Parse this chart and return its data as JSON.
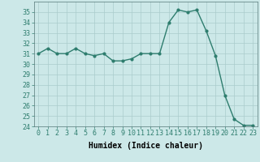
{
  "x": [
    0,
    1,
    2,
    3,
    4,
    5,
    6,
    7,
    8,
    9,
    10,
    11,
    12,
    13,
    14,
    15,
    16,
    17,
    18,
    19,
    20,
    21,
    22,
    23
  ],
  "y": [
    31,
    31.5,
    31,
    31,
    31.5,
    31,
    30.8,
    31,
    30.3,
    30.3,
    30.5,
    31,
    31,
    31,
    34,
    35.2,
    35,
    35.2,
    33.2,
    30.8,
    27,
    24.7,
    24.1,
    24.1
  ],
  "xlabel": "Humidex (Indice chaleur)",
  "ylim": [
    24,
    36
  ],
  "xlim": [
    -0.5,
    23.5
  ],
  "yticks": [
    24,
    25,
    26,
    27,
    28,
    29,
    30,
    31,
    32,
    33,
    34,
    35
  ],
  "xticks": [
    0,
    1,
    2,
    3,
    4,
    5,
    6,
    7,
    8,
    9,
    10,
    11,
    12,
    13,
    14,
    15,
    16,
    17,
    18,
    19,
    20,
    21,
    22,
    23
  ],
  "xtick_labels": [
    "0",
    "1",
    "2",
    "3",
    "4",
    "5",
    "6",
    "7",
    "8",
    "9",
    "10",
    "11",
    "12",
    "13",
    "14",
    "15",
    "16",
    "17",
    "18",
    "19",
    "20",
    "21",
    "22",
    "23"
  ],
  "line_color": "#2e7d6e",
  "marker_color": "#2e7d6e",
  "bg_color": "#cce8e8",
  "grid_color": "#aacccc",
  "xlabel_fontsize": 7,
  "tick_fontsize": 6
}
